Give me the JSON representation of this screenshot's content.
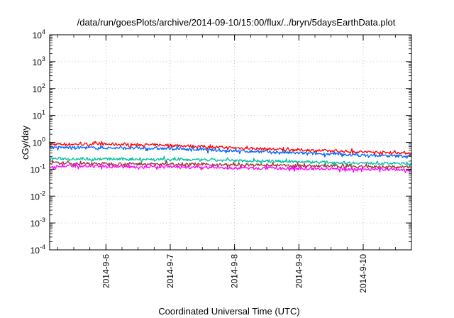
{
  "chart_data": {
    "type": "line",
    "title": "/data/run/goesPlots/archive/2014-09-10/15:00/flux/../bryn/5daysEarthData.plot",
    "xlabel": "Coordinated Universal Time (UTC)",
    "ylabel": "cGy/day",
    "y_scale": "log",
    "ylim": [
      0.0001,
      10000
    ],
    "y_ticks": [
      {
        "base": "10",
        "exp": "-4",
        "value": 0.0001
      },
      {
        "base": "10",
        "exp": "-3",
        "value": 0.001
      },
      {
        "base": "10",
        "exp": "-2",
        "value": 0.01
      },
      {
        "base": "10",
        "exp": "-1",
        "value": 0.1
      },
      {
        "base": "10",
        "exp": "0",
        "value": 1
      },
      {
        "base": "10",
        "exp": "1",
        "value": 10
      },
      {
        "base": "10",
        "exp": "2",
        "value": 100
      },
      {
        "base": "10",
        "exp": "3",
        "value": 1000
      },
      {
        "base": "10",
        "exp": "4",
        "value": 10000
      }
    ],
    "xlim": [
      "2014-09-05T03:00",
      "2014-09-10T18:00"
    ],
    "x_ticks": [
      {
        "label": "2014-9-6",
        "value": "2014-09-06"
      },
      {
        "label": "2014-9-7",
        "value": "2014-09-07"
      },
      {
        "label": "2014-9-8",
        "value": "2014-09-08"
      },
      {
        "label": "2014-9-9",
        "value": "2014-09-09"
      },
      {
        "label": "2014-9-10",
        "value": "2014-09-10"
      }
    ],
    "grid": true,
    "x": [
      "2014-09-05T03:00",
      "2014-09-06T00:00",
      "2014-09-07T00:00",
      "2014-09-08T00:00",
      "2014-09-09T00:00",
      "2014-09-10T00:00",
      "2014-09-10T18:00"
    ],
    "series": [
      {
        "color": "#ff0000",
        "values": [
          0.85,
          0.85,
          0.78,
          0.62,
          0.52,
          0.44,
          0.4
        ]
      },
      {
        "color": "#0066ff",
        "values": [
          0.65,
          0.62,
          0.58,
          0.48,
          0.4,
          0.33,
          0.3
        ]
      },
      {
        "color": "#00c0a0",
        "values": [
          0.25,
          0.24,
          0.23,
          0.21,
          0.19,
          0.17,
          0.16
        ]
      },
      {
        "color": "#a03030",
        "values": [
          0.17,
          0.16,
          0.155,
          0.145,
          0.135,
          0.125,
          0.12
        ]
      },
      {
        "color": "#ff00ff",
        "values": [
          0.13,
          0.125,
          0.12,
          0.11,
          0.105,
          0.1,
          0.095
        ]
      }
    ]
  }
}
